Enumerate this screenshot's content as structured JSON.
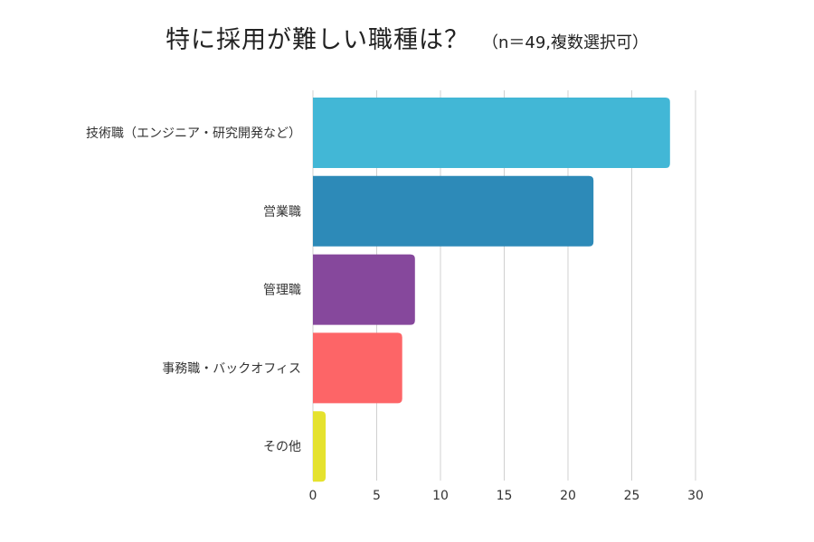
{
  "chart_data": {
    "type": "bar",
    "orientation": "horizontal",
    "title": "特に採用が難しい職種は？",
    "subtitle": "（n＝49,複数選択可）",
    "categories": [
      "技術職（エンジニア・研究開発など）",
      "営業職",
      "管理職",
      "事務職・バックオフィス",
      "その他"
    ],
    "values": [
      28,
      22,
      8,
      7,
      1
    ],
    "colors": [
      "#42b7d6",
      "#2d8ab8",
      "#86489c",
      "#fd6567",
      "#e5e22e"
    ],
    "xlim": [
      0,
      30
    ],
    "xticks": [
      0,
      5,
      10,
      15,
      20,
      25,
      30
    ],
    "xlabel": "",
    "ylabel": "",
    "grid": true,
    "legend": "none"
  }
}
